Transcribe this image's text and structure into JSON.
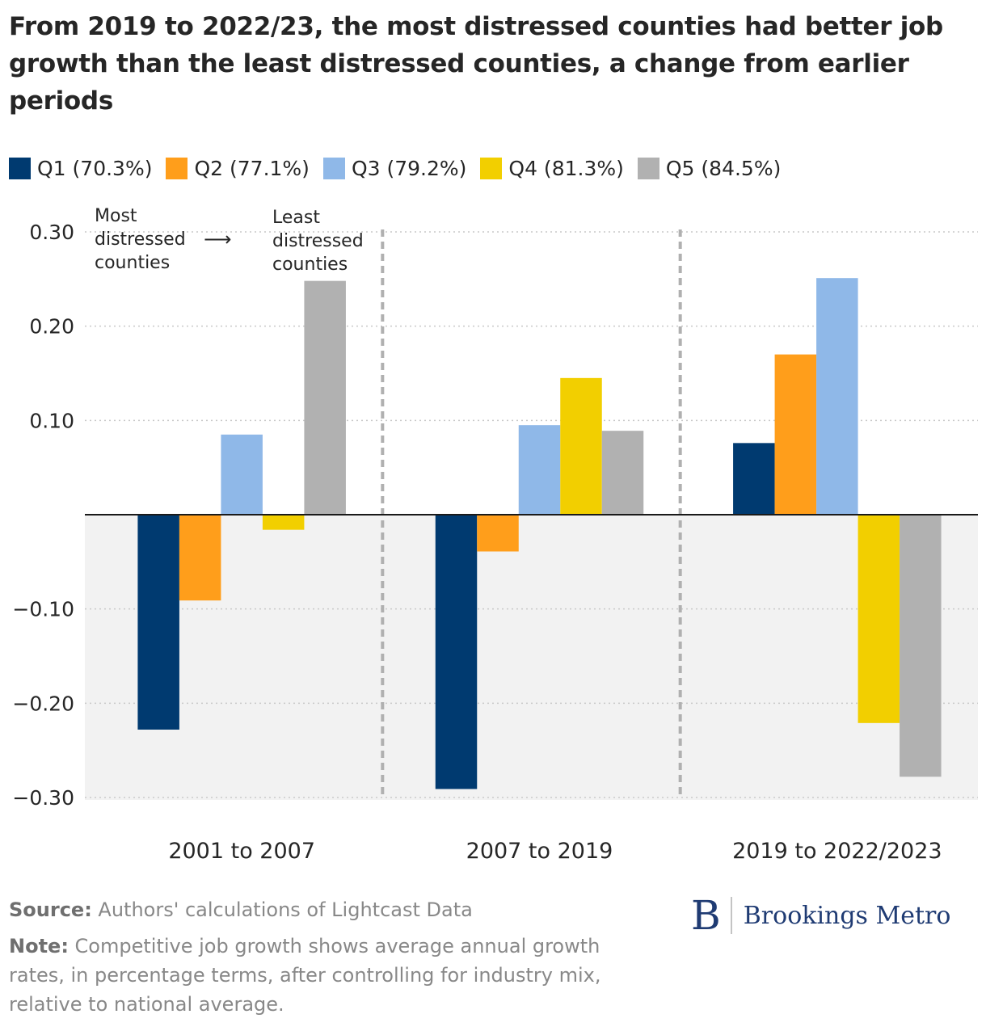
{
  "title": "From 2019 to 2022/23, the most distressed counties had better job growth than the least distressed counties, a change from earlier periods",
  "colors": {
    "Q1": "#003a70",
    "Q2": "#ff9e1b",
    "Q3": "#8fb8e8",
    "Q4": "#f2cf00",
    "Q5": "#b1b1b1",
    "negative_band": "#f2f2f2",
    "gridline": "#c9c9c9",
    "divider": "#b0b0b0"
  },
  "annotation": {
    "left": [
      "Most",
      "distressed",
      "counties"
    ],
    "arrow": "⟶",
    "right": [
      "Least",
      "distressed",
      "counties"
    ]
  },
  "chart_data": {
    "type": "bar",
    "categories": [
      "2001 to 2007",
      "2007 to 2019",
      "2019 to 2022/2023"
    ],
    "series": [
      {
        "name": "Q1 (70.3%)",
        "key": "Q1",
        "values": [
          -0.228,
          -0.291,
          0.076
        ]
      },
      {
        "name": "Q2 (77.1%)",
        "key": "Q2",
        "values": [
          -0.091,
          -0.039,
          0.17
        ]
      },
      {
        "name": "Q3 (79.2%)",
        "key": "Q3",
        "values": [
          0.085,
          0.095,
          0.251
        ]
      },
      {
        "name": "Q4 (81.3%)",
        "key": "Q4",
        "values": [
          -0.016,
          0.145,
          -0.221
        ]
      },
      {
        "name": "Q5 (84.5%)",
        "key": "Q5",
        "values": [
          0.248,
          0.089,
          -0.278
        ]
      }
    ],
    "ylim": [
      -0.3,
      0.3
    ],
    "yticks": [
      0.3,
      0.2,
      0.1,
      -0.1,
      -0.2,
      -0.3
    ],
    "ytick_labels": [
      "0.30",
      "0.20",
      "0.10",
      "−0.10",
      "−0.20",
      "−0.30"
    ],
    "grid": true,
    "legend_position": "top-left"
  },
  "footer": {
    "source_label": "Source:",
    "source_text": " Authors' calculations of Lightcast Data",
    "note_label": "Note:",
    "note_text": " Competitive job growth shows average annual growth rates, in percentage terms, after controlling for industry mix, relative to national average."
  },
  "logo": {
    "mark": "B",
    "text": "Brookings Metro"
  }
}
